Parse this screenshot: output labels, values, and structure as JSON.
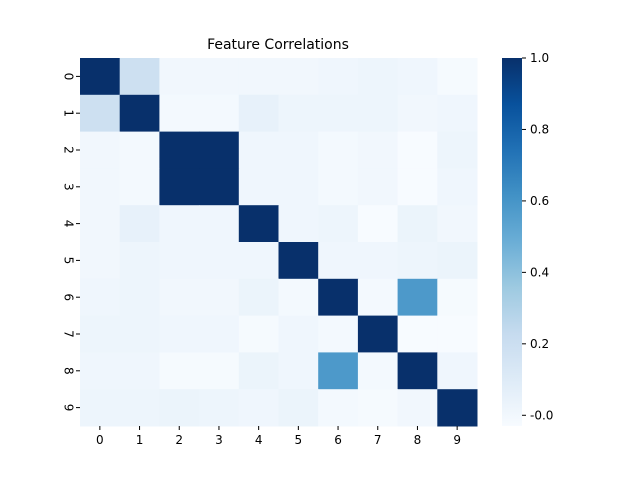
{
  "chart_data": {
    "type": "heatmap",
    "title": "Feature Correlations",
    "xlabel": "",
    "ylabel": "",
    "x_categories": [
      "0",
      "1",
      "2",
      "3",
      "4",
      "5",
      "6",
      "7",
      "8",
      "9"
    ],
    "y_categories": [
      "0",
      "1",
      "2",
      "3",
      "4",
      "5",
      "6",
      "7",
      "8",
      "9"
    ],
    "values": [
      [
        1.0,
        0.19,
        0.0,
        0.0,
        0.0,
        0.0,
        0.01,
        0.02,
        0.01,
        -0.02
      ],
      [
        0.19,
        1.0,
        -0.01,
        -0.01,
        0.05,
        0.02,
        0.02,
        0.02,
        0.0,
        0.01
      ],
      [
        0.0,
        -0.01,
        1.0,
        1.0,
        0.01,
        0.01,
        -0.01,
        0.0,
        -0.03,
        0.02
      ],
      [
        0.0,
        -0.01,
        1.0,
        1.0,
        0.01,
        0.01,
        -0.01,
        0.0,
        -0.03,
        0.01
      ],
      [
        0.0,
        0.05,
        0.01,
        0.01,
        1.0,
        0.01,
        0.02,
        -0.03,
        0.03,
        0.0
      ],
      [
        0.0,
        0.02,
        0.01,
        0.01,
        0.01,
        1.0,
        0.01,
        0.01,
        0.02,
        0.03
      ],
      [
        0.01,
        0.02,
        0.0,
        0.0,
        0.03,
        -0.01,
        1.0,
        -0.01,
        0.58,
        -0.02
      ],
      [
        0.02,
        0.02,
        0.01,
        0.01,
        -0.02,
        0.01,
        -0.01,
        1.0,
        -0.03,
        -0.04
      ],
      [
        0.01,
        0.01,
        -0.02,
        -0.02,
        0.03,
        0.01,
        0.58,
        -0.01,
        1.0,
        0.01
      ],
      [
        0.02,
        0.02,
        0.03,
        0.02,
        0.01,
        0.03,
        -0.01,
        -0.02,
        0.0,
        1.0
      ]
    ],
    "colormap": "Blues",
    "colorbar": {
      "min": -0.03,
      "max": 1.0,
      "ticks": [
        "-0.0",
        "0.2",
        "0.4",
        "0.6",
        "0.8",
        "1.0"
      ],
      "tick_values": [
        0.0,
        0.2,
        0.4,
        0.6,
        0.8,
        1.0
      ]
    },
    "grid": false,
    "legend": "colorbar-right"
  }
}
